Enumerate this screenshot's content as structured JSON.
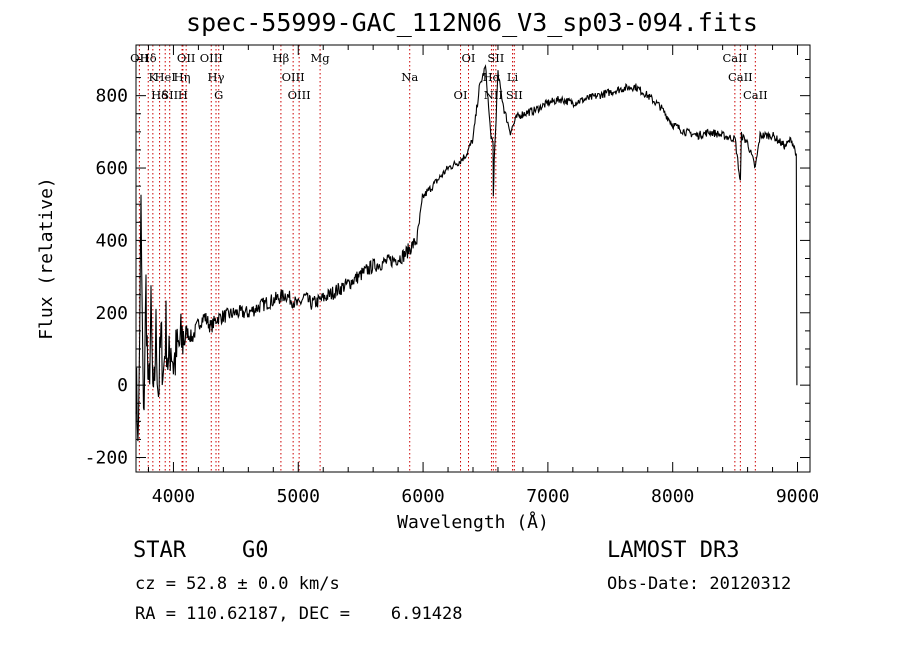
{
  "header": {
    "title": "spec-55999-GAC_112N06_V3_sp03-094.fits"
  },
  "info": {
    "object_class": "STAR",
    "subclass": "G0",
    "survey": "LAMOST DR3",
    "cz": "cz = 52.8 ± 0.0 km/s",
    "obs_date": "Obs-Date: 20120312",
    "radec": "RA = 110.62187, DEC =    6.91428"
  },
  "chart_data": {
    "type": "line",
    "title": "spec-55999-GAC_112N06_V3_sp03-094.fits",
    "xlabel": "Wavelength (Å)",
    "ylabel": "Flux (relative)",
    "xlim": [
      3700,
      9100
    ],
    "ylim": [
      -240,
      940
    ],
    "xticks": [
      4000,
      5000,
      6000,
      7000,
      8000,
      9000
    ],
    "yticks": [
      -200,
      0,
      200,
      400,
      600,
      800
    ],
    "line_color": "#000000",
    "marker_color": "#cc0000",
    "series": [
      {
        "name": "flux",
        "x": [
          3700,
          3720,
          3740,
          3760,
          3780,
          3800,
          3820,
          3840,
          3860,
          3880,
          3900,
          3920,
          3940,
          3960,
          3980,
          4000,
          4050,
          4100,
          4150,
          4200,
          4250,
          4300,
          4350,
          4400,
          4500,
          4600,
          4700,
          4800,
          4900,
          5000,
          5050,
          5100,
          5150,
          5200,
          5300,
          5400,
          5500,
          5600,
          5700,
          5800,
          5850,
          5900,
          5950,
          6000,
          6050,
          6100,
          6200,
          6300,
          6350,
          6400,
          6450,
          6500,
          6540,
          6560,
          6563,
          6570,
          6600,
          6650,
          6700,
          6750,
          6800,
          6900,
          7000,
          7100,
          7200,
          7300,
          7400,
          7500,
          7600,
          7700,
          7800,
          7900,
          8000,
          8100,
          8200,
          8300,
          8400,
          8500,
          8542,
          8550,
          8600,
          8662,
          8700,
          8800,
          8900,
          8950,
          8990
        ],
        "y": [
          10,
          -140,
          480,
          -120,
          270,
          -60,
          200,
          -80,
          150,
          -20,
          130,
          30,
          160,
          40,
          120,
          60,
          110,
          150,
          130,
          170,
          190,
          160,
          185,
          190,
          200,
          200,
          220,
          235,
          250,
          220,
          245,
          225,
          230,
          240,
          260,
          280,
          305,
          330,
          340,
          350,
          360,
          380,
          400,
          520,
          540,
          560,
          600,
          620,
          640,
          680,
          820,
          880,
          700,
          660,
          520,
          620,
          860,
          760,
          700,
          740,
          750,
          760,
          780,
          790,
          780,
          790,
          800,
          810,
          820,
          825,
          800,
          770,
          720,
          700,
          690,
          700,
          690,
          680,
          560,
          690,
          670,
          600,
          690,
          690,
          660,
          680,
          640
        ]
      }
    ],
    "line_markers": [
      {
        "label": "Hδ",
        "wave": 3798
      },
      {
        "label": "K",
        "wave": 3835
      },
      {
        "label": "Hδ",
        "wave": 3889
      },
      {
        "label": "OII",
        "wave": 3727
      },
      {
        "label": "HeI",
        "wave": 3934
      },
      {
        "label": "SII",
        "wave": 3970
      },
      {
        "label": "OII",
        "wave": 4102
      },
      {
        "label": "Hη",
        "wave": 4069
      },
      {
        "label": "H",
        "wave": 4076
      },
      {
        "label": "OIII",
        "wave": 4303
      },
      {
        "label": "Hγ",
        "wave": 4341
      },
      {
        "label": "G",
        "wave": 4363
      },
      {
        "label": "Hβ",
        "wave": 4861
      },
      {
        "label": "OIII",
        "wave": 4959
      },
      {
        "label": "OIII",
        "wave": 5007
      },
      {
        "label": "Mg",
        "wave": 5175
      },
      {
        "label": "Na",
        "wave": 5893
      },
      {
        "label": "OI",
        "wave": 6300
      },
      {
        "label": "OI",
        "wave": 6364
      },
      {
        "label": "Hα",
        "wave": 6548
      },
      {
        "label": "NII",
        "wave": 6563
      },
      {
        "label": "SII",
        "wave": 6583
      },
      {
        "label": "Li",
        "wave": 6717
      },
      {
        "label": "SII",
        "wave": 6731
      },
      {
        "label": "CaII",
        "wave": 8498
      },
      {
        "label": "CaII",
        "wave": 8542
      },
      {
        "label": "CaII",
        "wave": 8662
      }
    ]
  }
}
